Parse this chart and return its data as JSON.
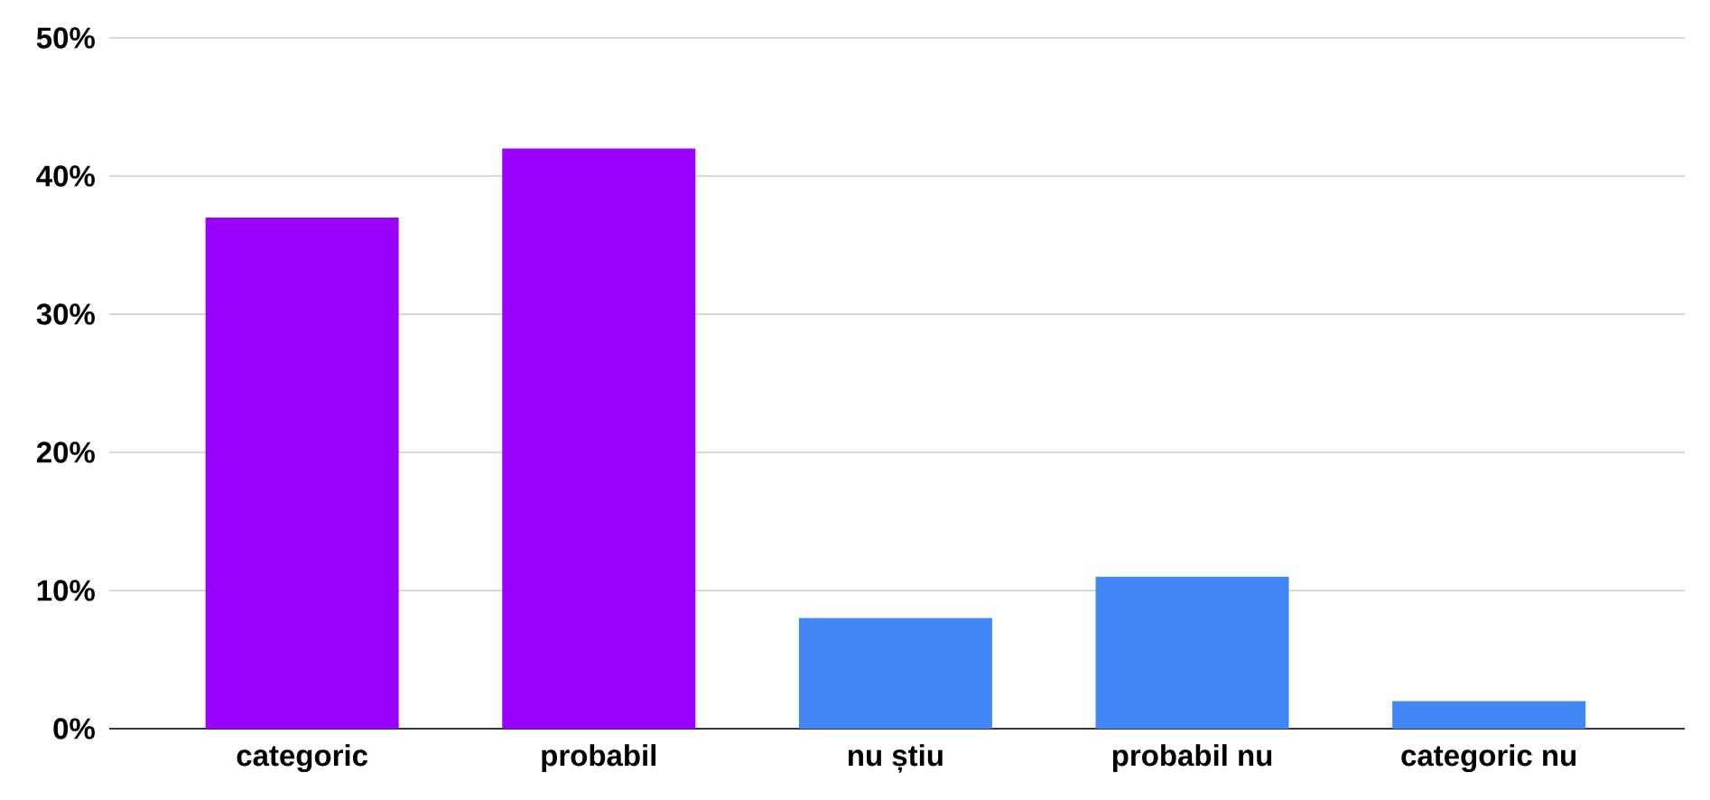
{
  "chart_data": {
    "type": "bar",
    "categories": [
      "categoric",
      "probabil",
      "nu știu",
      "probabil nu",
      "categoric nu"
    ],
    "values": [
      37,
      42,
      8,
      11,
      2
    ],
    "colors": [
      "#9900ff",
      "#9900ff",
      "#4285f4",
      "#4285f4",
      "#4285f4"
    ],
    "ylim": [
      0,
      50
    ],
    "yticks": [
      {
        "value": 0,
        "label": "0%"
      },
      {
        "value": 10,
        "label": "10%"
      },
      {
        "value": 20,
        "label": "20%"
      },
      {
        "value": 30,
        "label": "30%"
      },
      {
        "value": 40,
        "label": "40%"
      },
      {
        "value": 50,
        "label": "50%"
      }
    ],
    "grid": "y"
  }
}
